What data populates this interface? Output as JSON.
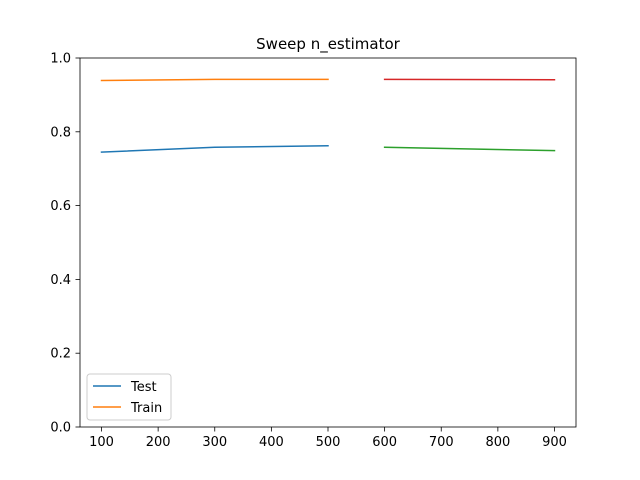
{
  "chart_data": {
    "type": "line",
    "title": "Sweep n_estimator",
    "xlabel": "",
    "ylabel": "",
    "xlim": [
      62,
      938
    ],
    "ylim": [
      0.0,
      1.0
    ],
    "xticks": [
      100,
      200,
      300,
      400,
      500,
      600,
      700,
      800,
      900
    ],
    "yticks": [
      0.0,
      0.2,
      0.4,
      0.6,
      0.8,
      1.0
    ],
    "xtick_labels": [
      "100",
      "200",
      "300",
      "400",
      "500",
      "600",
      "700",
      "800",
      "900"
    ],
    "ytick_labels": [
      "0.0",
      "0.2",
      "0.4",
      "0.6",
      "0.8",
      "1.0"
    ],
    "grid": false,
    "legend_position": "lower-left",
    "legend": [
      {
        "label": "Test",
        "color": "#1f77b4"
      },
      {
        "label": "Train",
        "color": "#ff7f0e"
      }
    ],
    "series": [
      {
        "name": "Test",
        "color": "#1f77b4",
        "x": [
          100,
          300,
          500
        ],
        "y": [
          0.745,
          0.758,
          0.762
        ]
      },
      {
        "name": "Train",
        "color": "#ff7f0e",
        "x": [
          100,
          300,
          500
        ],
        "y": [
          0.939,
          0.942,
          0.942
        ]
      },
      {
        "color": "#2ca02c",
        "x": [
          600,
          900
        ],
        "y": [
          0.758,
          0.749
        ]
      },
      {
        "color": "#d62728",
        "x": [
          600,
          900
        ],
        "y": [
          0.942,
          0.941
        ]
      }
    ]
  }
}
